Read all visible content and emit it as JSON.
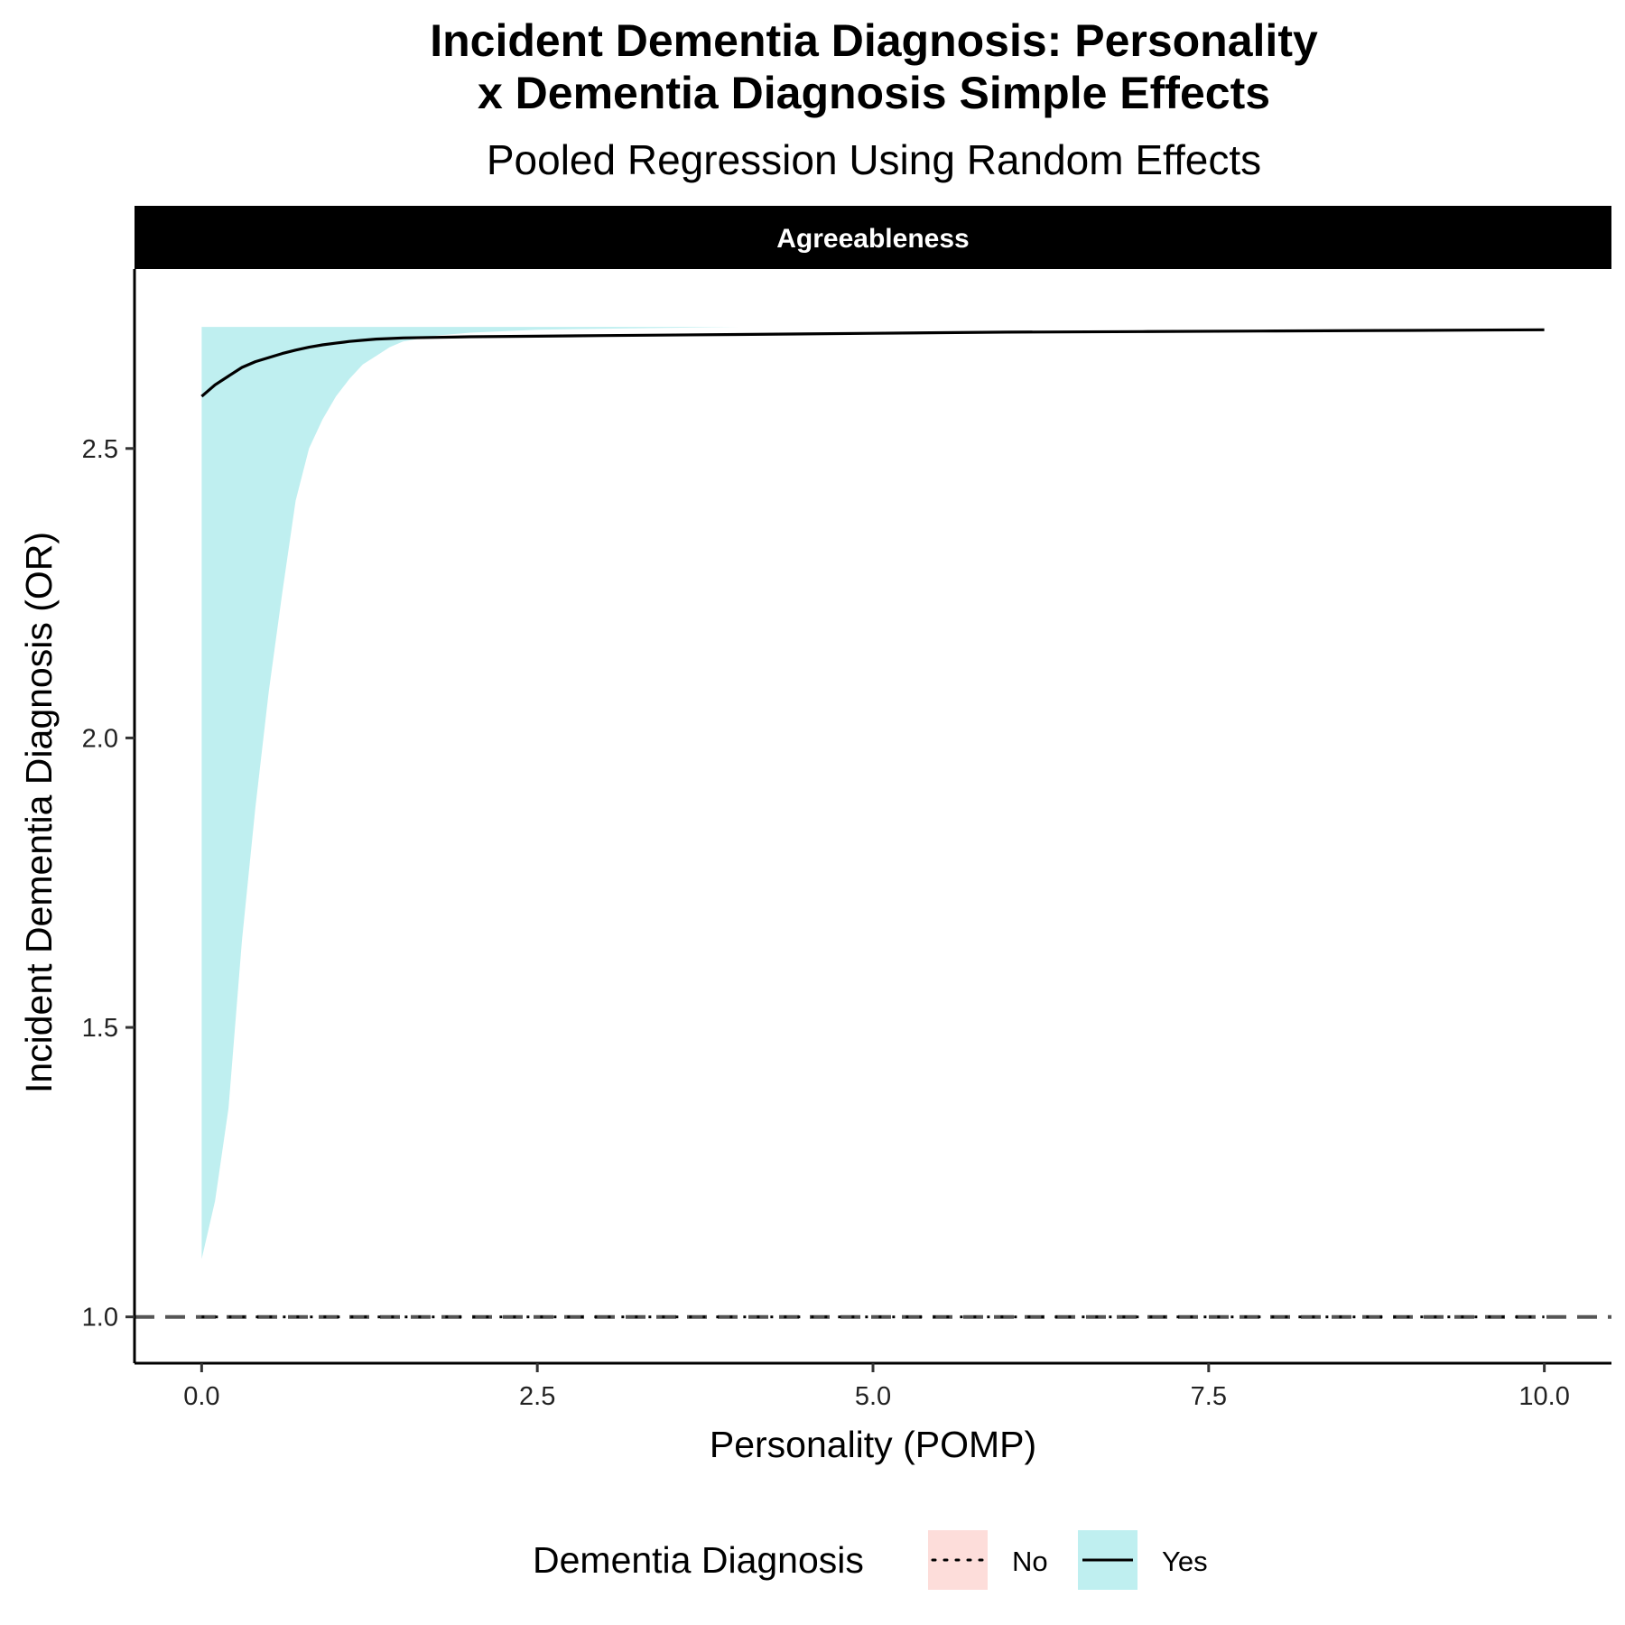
{
  "chart_data": {
    "type": "line",
    "title_line1": "Incident Dementia Diagnosis: Personality",
    "title_line2": "x Dementia Diagnosis Simple Effects",
    "subtitle": "Pooled Regression Using Random Effects",
    "facet": "Agreeableness",
    "xlabel": "Personality (POMP)",
    "ylabel": "Incident Dementia Diagnosis (OR)",
    "xlim": [
      -0.5,
      10.5
    ],
    "ylim": [
      0.92,
      2.81
    ],
    "x_ticks": [
      0,
      2.5,
      5,
      7.5,
      10
    ],
    "x_tick_labels": [
      "0.0",
      "2.5",
      "5.0",
      "7.5",
      "10.0"
    ],
    "y_ticks": [
      1.0,
      1.5,
      2.0,
      2.5
    ],
    "y_tick_labels": [
      "1.0",
      "1.5",
      "2.0",
      "2.5"
    ],
    "reference_line": {
      "y": 1.0,
      "style": "dashed"
    },
    "grid": false,
    "legend": {
      "title": "Dementia Diagnosis",
      "position": "bottom",
      "entries": [
        {
          "label": "No",
          "linetype": "dotted",
          "fill": "#F8766D"
        },
        {
          "label": "Yes",
          "linetype": "solid",
          "fill": "#00BFC4"
        }
      ]
    },
    "series": [
      {
        "name": "Yes",
        "linetype": "solid",
        "color": "#000000",
        "fill": "#00BFC4",
        "x": [
          0,
          0.1,
          0.2,
          0.3,
          0.4,
          0.5,
          0.6,
          0.7,
          0.8,
          0.9,
          1.0,
          1.1,
          1.2,
          1.3,
          1.4,
          1.5,
          1.75,
          2.0,
          2.5,
          3.0,
          4.0,
          5.0,
          6.0,
          7.0,
          8.0,
          9.0,
          10.0
        ],
        "y": [
          2.59,
          2.61,
          2.625,
          2.64,
          2.65,
          2.657,
          2.664,
          2.67,
          2.675,
          2.679,
          2.682,
          2.685,
          2.687,
          2.689,
          2.69,
          2.691,
          2.692,
          2.693,
          2.694,
          2.695,
          2.697,
          2.699,
          2.701,
          2.702,
          2.703,
          2.704,
          2.705
        ],
        "lower": [
          1.1,
          1.2,
          1.36,
          1.65,
          1.88,
          2.08,
          2.25,
          2.41,
          2.5,
          2.55,
          2.59,
          2.62,
          2.645,
          2.66,
          2.675,
          2.685,
          2.695,
          2.7,
          2.705,
          2.707,
          2.71,
          2.71,
          2.71,
          2.71,
          2.71,
          2.71,
          2.71
        ],
        "upper": [
          2.71,
          2.71,
          2.71,
          2.71,
          2.71,
          2.71,
          2.71,
          2.71,
          2.71,
          2.71,
          2.71,
          2.71,
          2.71,
          2.71,
          2.71,
          2.71,
          2.71,
          2.71,
          2.71,
          2.71,
          2.71,
          2.71,
          2.71,
          2.71,
          2.71,
          2.71,
          2.71
        ]
      }
    ]
  }
}
